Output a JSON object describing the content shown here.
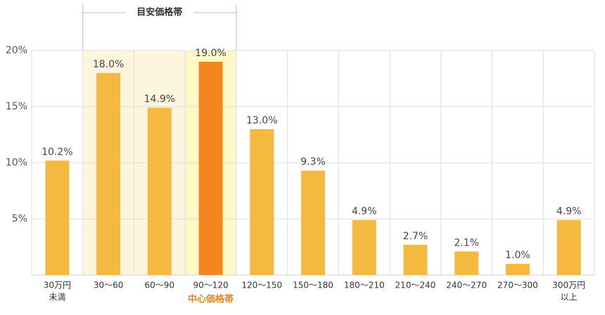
{
  "chart_data": {
    "type": "bar",
    "range_label": "目安価格帯",
    "center_label": "中心価格帯",
    "categories": [
      [
        "30万円",
        "未満"
      ],
      "30～60",
      "60～90",
      "90～120",
      "120～150",
      "150～180",
      "180～210",
      "210～240",
      "240～270",
      "270～300",
      [
        "300万円",
        "以上"
      ]
    ],
    "values": [
      10.2,
      18.0,
      14.9,
      19.0,
      13.0,
      9.3,
      4.9,
      2.7,
      2.1,
      1.0,
      4.9
    ],
    "value_labels": [
      "10.2%",
      "18.0%",
      "14.9%",
      "19.0%",
      "13.0%",
      "9.3%",
      "4.9%",
      "2.7%",
      "2.1%",
      "1.0%",
      "4.9%"
    ],
    "colors": [
      "#f6b940",
      "#f6b940",
      "#f6b940",
      "#f5861f",
      "#f6b940",
      "#f6b940",
      "#f6b940",
      "#f6b940",
      "#f6b940",
      "#f6b940",
      "#f6b940"
    ],
    "ylim": [
      0,
      20
    ],
    "yticks": [
      {
        "value": 5,
        "label": "5%"
      },
      {
        "value": 10,
        "label": "10%"
      },
      {
        "value": 15,
        "label": "15%"
      },
      {
        "value": 20,
        "label": "20%"
      }
    ],
    "grid": true
  }
}
